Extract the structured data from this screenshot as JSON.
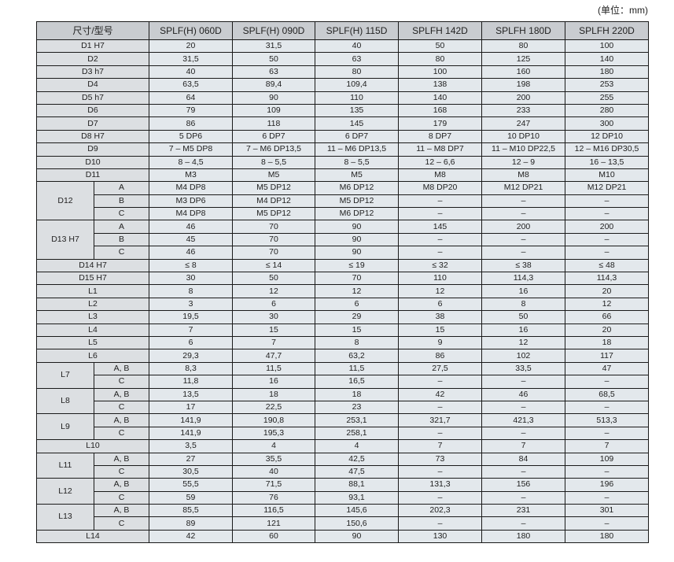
{
  "unit_note": "(单位：mm)",
  "table": {
    "corner_header": "尺寸/型号",
    "models": [
      "SPLF(H) 060D",
      "SPLF(H) 090D",
      "SPLF(H) 115D",
      "SPLFH 142D",
      "SPLFH 180D",
      "SPLFH 220D"
    ],
    "rows": [
      {
        "label": "D1 H7",
        "values": [
          "20",
          "31,5",
          "40",
          "50",
          "80",
          "100"
        ]
      },
      {
        "label": "D2",
        "values": [
          "31,5",
          "50",
          "63",
          "80",
          "125",
          "140"
        ]
      },
      {
        "label": "D3 h7",
        "values": [
          "40",
          "63",
          "80",
          "100",
          "160",
          "180"
        ]
      },
      {
        "label": "D4",
        "values": [
          "63,5",
          "89,4",
          "109,4",
          "138",
          "198",
          "253"
        ]
      },
      {
        "label": "D5 h7",
        "values": [
          "64",
          "90",
          "110",
          "140",
          "200",
          "255"
        ]
      },
      {
        "label": "D6",
        "values": [
          "79",
          "109",
          "135",
          "168",
          "233",
          "280"
        ]
      },
      {
        "label": "D7",
        "values": [
          "86",
          "118",
          "145",
          "179",
          "247",
          "300"
        ]
      },
      {
        "label": "D8 H7",
        "values": [
          "5 DP6",
          "6 DP7",
          "6 DP7",
          "8 DP7",
          "10 DP10",
          "12 DP10"
        ]
      },
      {
        "label": "D9",
        "values": [
          "7 – M5 DP8",
          "7 – M6 DP13,5",
          "11 – M6 DP13,5",
          "11 – M8 DP7",
          "11 – M10 DP22,5",
          "12 – M16 DP30,5"
        ]
      },
      {
        "label": "D10",
        "values": [
          "8 – 4,5",
          "8 – 5,5",
          "8 – 5,5",
          "12 – 6,6",
          "12 – 9",
          "16 – 13,5"
        ]
      },
      {
        "label": "D11",
        "values": [
          "M3",
          "M5",
          "M5",
          "M8",
          "M8",
          "M10"
        ]
      },
      {
        "label": "D12",
        "sub": [
          {
            "name": "A",
            "values": [
              "M4 DP8",
              "M5 DP12",
              "M6 DP12",
              "M8 DP20",
              "M12 DP21",
              "M12 DP21"
            ]
          },
          {
            "name": "B",
            "values": [
              "M3 DP6",
              "M4 DP12",
              "M5 DP12",
              "–",
              "–",
              "–"
            ]
          },
          {
            "name": "C",
            "values": [
              "M4 DP8",
              "M5 DP12",
              "M6 DP12",
              "–",
              "–",
              "–"
            ]
          }
        ]
      },
      {
        "label": "D13 H7",
        "sub": [
          {
            "name": "A",
            "values": [
              "46",
              "70",
              "90",
              "145",
              "200",
              "200"
            ]
          },
          {
            "name": "B",
            "values": [
              "45",
              "70",
              "90",
              "–",
              "–",
              "–"
            ]
          },
          {
            "name": "C",
            "values": [
              "46",
              "70",
              "90",
              "–",
              "–",
              "–"
            ]
          }
        ]
      },
      {
        "label": "D14 H7",
        "values": [
          "≤ 8",
          "≤ 14",
          "≤ 19",
          "≤ 32",
          "≤ 38",
          "≤ 48"
        ]
      },
      {
        "label": "D15 H7",
        "values": [
          "30",
          "50",
          "70",
          "110",
          "114,3",
          "114,3"
        ]
      },
      {
        "label": "L1",
        "values": [
          "8",
          "12",
          "12",
          "12",
          "16",
          "20"
        ]
      },
      {
        "label": "L2",
        "values": [
          "3",
          "6",
          "6",
          "6",
          "8",
          "12"
        ]
      },
      {
        "label": "L3",
        "values": [
          "19,5",
          "30",
          "29",
          "38",
          "50",
          "66"
        ]
      },
      {
        "label": "L4",
        "values": [
          "7",
          "15",
          "15",
          "15",
          "16",
          "20"
        ]
      },
      {
        "label": "L5",
        "values": [
          "6",
          "7",
          "8",
          "9",
          "12",
          "18"
        ]
      },
      {
        "label": "L6",
        "values": [
          "29,3",
          "47,7",
          "63,2",
          "86",
          "102",
          "117"
        ]
      },
      {
        "label": "L7",
        "sub": [
          {
            "name": "A, B",
            "values": [
              "8,3",
              "11,5",
              "11,5",
              "27,5",
              "33,5",
              "47"
            ]
          },
          {
            "name": "C",
            "values": [
              "11,8",
              "16",
              "16,5",
              "–",
              "–",
              "–"
            ]
          }
        ]
      },
      {
        "label": "L8",
        "sub": [
          {
            "name": "A, B",
            "values": [
              "13,5",
              "18",
              "18",
              "42",
              "46",
              "68,5"
            ]
          },
          {
            "name": "C",
            "values": [
              "17",
              "22,5",
              "23",
              "–",
              "–",
              "–"
            ]
          }
        ]
      },
      {
        "label": "L9",
        "sub": [
          {
            "name": "A, B",
            "values": [
              "141,9",
              "190,8",
              "253,1",
              "321,7",
              "421,3",
              "513,3"
            ]
          },
          {
            "name": "C",
            "values": [
              "141,9",
              "195,3",
              "258,1",
              "–",
              "–",
              "–"
            ]
          }
        ]
      },
      {
        "label": "L10",
        "values": [
          "3,5",
          "4",
          "4",
          "7",
          "7",
          "7"
        ]
      },
      {
        "label": "L11",
        "sub": [
          {
            "name": "A, B",
            "values": [
              "27",
              "35,5",
              "42,5",
              "73",
              "84",
              "109"
            ]
          },
          {
            "name": "C",
            "values": [
              "30,5",
              "40",
              "47,5",
              "–",
              "–",
              "–"
            ]
          }
        ]
      },
      {
        "label": "L12",
        "sub": [
          {
            "name": "A, B",
            "values": [
              "55,5",
              "71,5",
              "88,1",
              "131,3",
              "156",
              "196"
            ]
          },
          {
            "name": "C",
            "values": [
              "59",
              "76",
              "93,1",
              "–",
              "–",
              "–"
            ]
          }
        ]
      },
      {
        "label": "L13",
        "sub": [
          {
            "name": "A, B",
            "values": [
              "85,5",
              "116,5",
              "145,6",
              "202,3",
              "231",
              "301"
            ]
          },
          {
            "name": "C",
            "values": [
              "89",
              "121",
              "150,6",
              "–",
              "–",
              "–"
            ]
          }
        ]
      },
      {
        "label": "L14",
        "values": [
          "42",
          "60",
          "90",
          "130",
          "180",
          "180"
        ]
      }
    ]
  }
}
